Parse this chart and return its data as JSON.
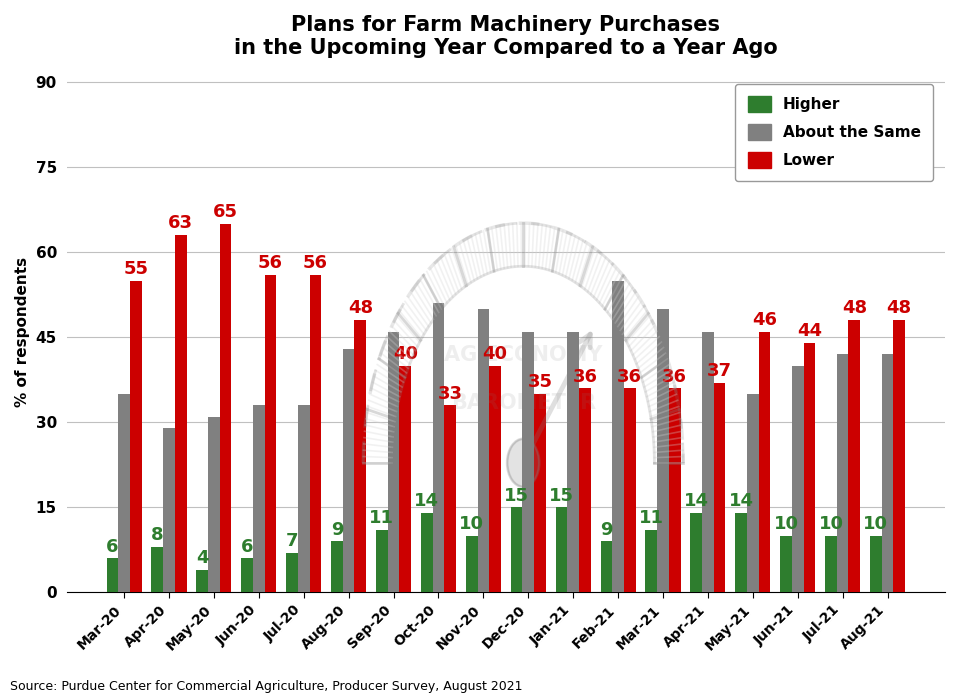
{
  "title": "Plans for Farm Machinery Purchases\nin the Upcoming Year Compared to a Year Ago",
  "ylabel": "% of respondents",
  "source": "Source: Purdue Center for Commercial Agriculture, Producer Survey, August 2021",
  "categories": [
    "Mar-20",
    "Apr-20",
    "May-20",
    "Jun-20",
    "Jul-20",
    "Aug-20",
    "Sep-20",
    "Oct-20",
    "Nov-20",
    "Dec-20",
    "Jan-21",
    "Feb-21",
    "Mar-21",
    "Apr-21",
    "May-21",
    "Jun-21",
    "Jul-21",
    "Aug-21"
  ],
  "higher": [
    6,
    8,
    4,
    6,
    7,
    9,
    11,
    14,
    10,
    15,
    15,
    9,
    11,
    14,
    14,
    10,
    10,
    10
  ],
  "about_same": [
    35,
    29,
    31,
    33,
    33,
    43,
    46,
    51,
    50,
    46,
    46,
    55,
    50,
    46,
    35,
    40,
    42,
    42
  ],
  "lower": [
    55,
    63,
    65,
    56,
    56,
    48,
    40,
    33,
    40,
    35,
    36,
    36,
    36,
    37,
    46,
    44,
    48,
    48
  ],
  "higher_color": "#2e7d2e",
  "about_same_color": "#808080",
  "lower_color": "#cc0000",
  "ylim": [
    0,
    92
  ],
  "yticks": [
    0,
    15,
    30,
    45,
    60,
    75,
    90
  ],
  "background_color": "#ffffff",
  "grid_color": "#c0c0c0",
  "title_fontsize": 15,
  "label_fontsize": 11,
  "tick_fontsize": 10,
  "bar_label_fontsize": 13,
  "source_fontsize": 9,
  "bar_width": 0.26,
  "legend_fontsize": 11
}
